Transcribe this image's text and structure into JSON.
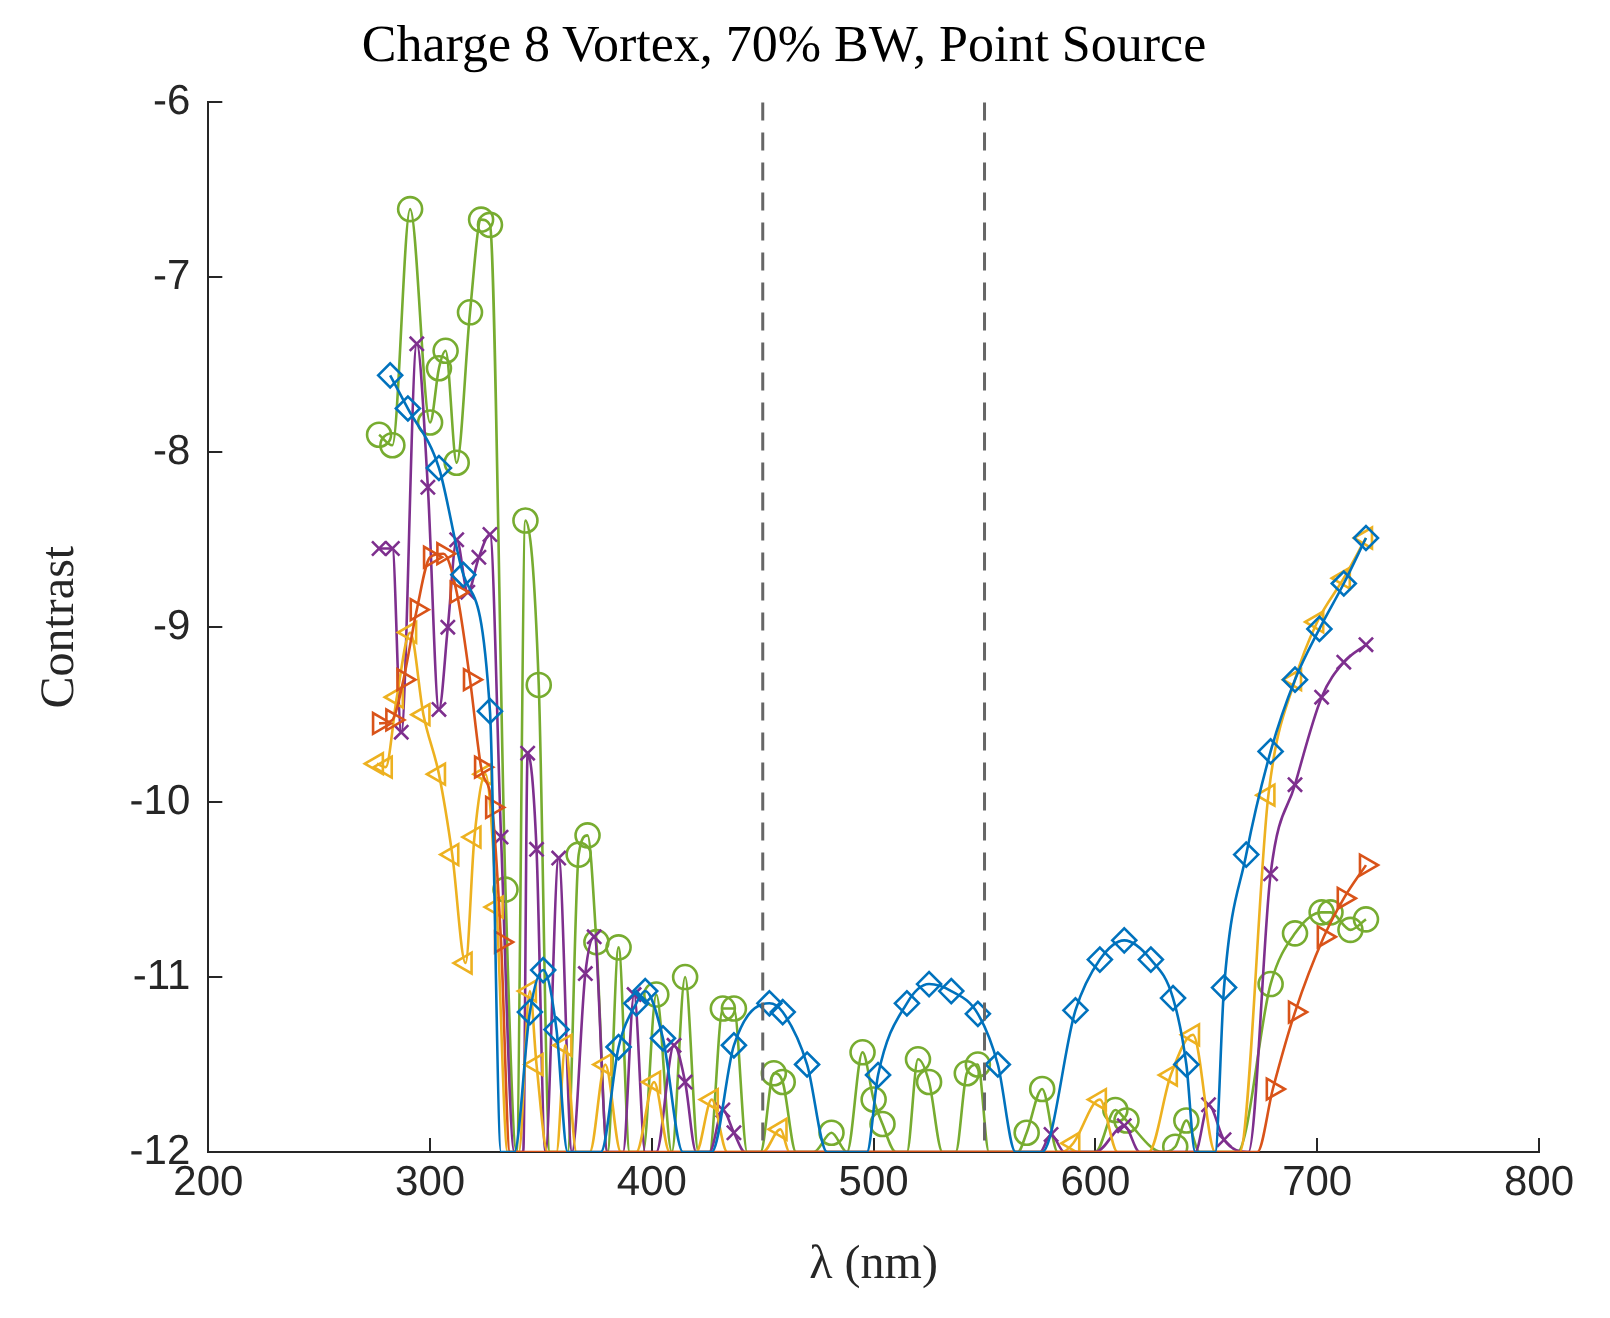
{
  "chart_data": {
    "type": "line",
    "title": "Charge 8 Vortex, 70% BW, Point Source",
    "xlabel": "λ (nm)",
    "ylabel": "Contrast",
    "xlim": [
      200,
      800
    ],
    "xticks": [
      200,
      300,
      400,
      500,
      600,
      700,
      800
    ],
    "ylim": [
      -12,
      -6
    ],
    "yticks": [
      -12,
      -11,
      -10,
      -9,
      -8,
      -7,
      -6
    ],
    "grid": false,
    "legend": false,
    "ref_lines": [
      {
        "axis": "x",
        "value": 450,
        "color": "#666666",
        "line_style": "dashed"
      },
      {
        "axis": "x",
        "value": 550,
        "color": "#666666",
        "line_style": "dashed"
      }
    ],
    "series": [
      {
        "color": "#0072bd",
        "marker": "diamond",
        "x": [
          282,
          290,
          304,
          315,
          327,
          332,
          338,
          345,
          351,
          357,
          362,
          377,
          385,
          393,
          397,
          405,
          414,
          427,
          437,
          453,
          459,
          470,
          479,
          497,
          502,
          515,
          525,
          535,
          547,
          556,
          564,
          576,
          591,
          602,
          613,
          625,
          635,
          641,
          645,
          654,
          658,
          668,
          679,
          690,
          701,
          712,
          722
        ],
        "values": [
          -7.56,
          -7.75,
          -8.09,
          -8.7,
          -9.48,
          -12,
          -12,
          -11.2,
          -10.96,
          -11.3,
          -12,
          -12,
          -11.4,
          -11.15,
          -11.08,
          -11.35,
          -12,
          -12,
          -11.39,
          -11.15,
          -11.2,
          -11.5,
          -12,
          -12,
          -11.56,
          -11.15,
          -11.04,
          -11.08,
          -11.21,
          -11.5,
          -12,
          -12,
          -11.19,
          -10.9,
          -10.79,
          -10.9,
          -11.12,
          -11.5,
          -12,
          -12,
          -11.06,
          -10.3,
          -9.71,
          -9.3,
          -9.01,
          -8.75,
          -8.49
        ]
      },
      {
        "color": "#d95319",
        "marker": "triangle",
        "x": [
          277,
          283,
          288,
          294,
          300,
          306,
          312,
          318,
          323,
          328,
          332,
          336,
          673,
          680,
          690,
          703,
          712,
          722
        ],
        "values": [
          -9.55,
          -9.53,
          -9.3,
          -8.9,
          -8.6,
          -8.58,
          -8.8,
          -9.3,
          -9.8,
          -10.03,
          -10.8,
          -12,
          -12,
          -11.64,
          -11.2,
          -10.77,
          -10.55,
          -10.36
        ]
      },
      {
        "color": "#edb120",
        "marker": "triangle",
        "x": [
          276,
          280,
          285,
          291,
          297,
          304,
          310,
          316,
          320,
          325,
          330,
          335,
          340,
          345,
          348,
          353,
          357,
          361,
          366,
          372,
          379,
          386,
          393,
          401,
          408,
          420,
          427,
          434,
          450,
          458,
          462,
          585,
          590,
          602,
          610,
          624,
          634,
          644,
          654,
          665,
          678,
          690,
          700,
          712,
          722
        ],
        "values": [
          -9.78,
          -9.8,
          -9.4,
          -9.03,
          -9.5,
          -9.84,
          -10.3,
          -10.92,
          -10.2,
          -9.84,
          -10.6,
          -12,
          -12,
          -11.08,
          -11.5,
          -12,
          -12,
          -11.39,
          -12,
          -12,
          -11.5,
          -12,
          -12,
          -11.6,
          -12,
          -12,
          -11.7,
          -12,
          -12,
          -11.87,
          -12,
          -12,
          -11.95,
          -11.7,
          -12,
          -12,
          -11.56,
          -11.33,
          -12,
          -12,
          -9.96,
          -9.3,
          -8.97,
          -8.72,
          -8.49
        ]
      },
      {
        "color": "#7e2f8e",
        "marker": "cross",
        "x": [
          277,
          283,
          287,
          294,
          299,
          304,
          308,
          312,
          317,
          322,
          327,
          332,
          338,
          342,
          344,
          348,
          352,
          358,
          364,
          370,
          374,
          380,
          387,
          392,
          397,
          402,
          410,
          415,
          420,
          426,
          432,
          437,
          442,
          575,
          580,
          586,
          600,
          613,
          620,
          645,
          651,
          658,
          669,
          679,
          690,
          702,
          712,
          722
        ],
        "values": [
          -8.55,
          -8.55,
          -9.6,
          -7.38,
          -8.2,
          -9.47,
          -9.0,
          -8.5,
          -8.8,
          -8.6,
          -8.47,
          -10.2,
          -12,
          -12,
          -9.72,
          -10.27,
          -12,
          -10.32,
          -12,
          -10.98,
          -10.77,
          -12,
          -12,
          -11.1,
          -12,
          -12,
          -11.39,
          -11.6,
          -12,
          -12,
          -11.76,
          -11.89,
          -12,
          -12,
          -11.9,
          -12,
          -12,
          -11.85,
          -12,
          -12,
          -11.73,
          -11.93,
          -12,
          -10.41,
          -9.9,
          -9.4,
          -9.2,
          -9.1
        ]
      },
      {
        "color": "#77ac30",
        "marker": "circle",
        "x": [
          277,
          283,
          291,
          300,
          304,
          307,
          312,
          318,
          323,
          327,
          334,
          339,
          343,
          349,
          354,
          362,
          367,
          371,
          375,
          380,
          385,
          390,
          396,
          402,
          409,
          415,
          421,
          426,
          432,
          437,
          443,
          449,
          455,
          459,
          465,
          473,
          481,
          488,
          495,
          500,
          504,
          510,
          515,
          520,
          525,
          531,
          537,
          542,
          547,
          552,
          565,
          569,
          576,
          583,
          600,
          609,
          614,
          630,
          636,
          641,
          647,
          664,
          679,
          690,
          702,
          706,
          715,
          722
        ],
        "values": [
          -7.9,
          -7.96,
          -6.61,
          -7.83,
          -7.52,
          -7.42,
          -8.06,
          -7.2,
          -6.67,
          -6.7,
          -10.5,
          -12,
          -8.39,
          -9.33,
          -12,
          -12,
          -10.3,
          -10.19,
          -10.8,
          -12,
          -10.83,
          -12,
          -12,
          -11.1,
          -12,
          -11.0,
          -12,
          -12,
          -11.18,
          -11.18,
          -12,
          -12,
          -11.55,
          -11.6,
          -12,
          -12,
          -11.89,
          -12,
          -11.43,
          -11.7,
          -11.84,
          -12,
          -12,
          -11.47,
          -11.6,
          -12,
          -12,
          -11.55,
          -11.5,
          -12,
          -12,
          -11.89,
          -11.64,
          -12,
          -12,
          -11.76,
          -11.82,
          -12,
          -11.97,
          -11.82,
          -12,
          -12,
          -11.04,
          -10.75,
          -10.63,
          -10.63,
          -10.73,
          -10.67
        ]
      }
    ]
  }
}
